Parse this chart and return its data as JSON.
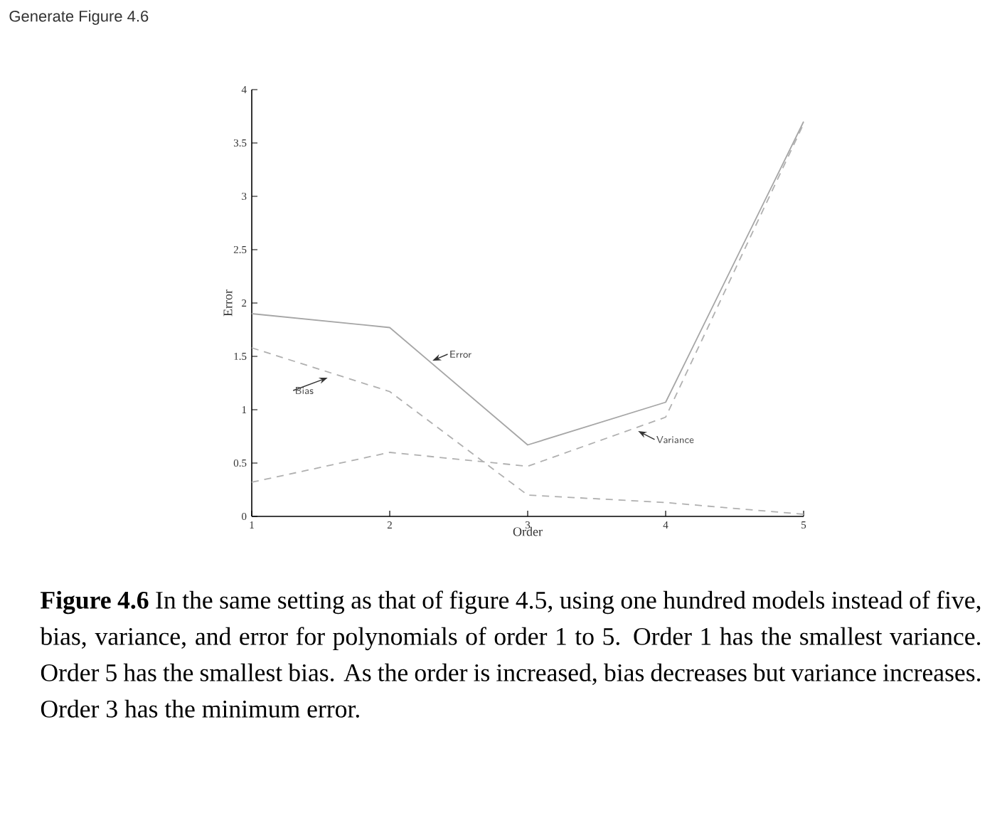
{
  "chart_data": {
    "type": "line",
    "title": "Generate Figure 4.6",
    "xlabel": "Order",
    "ylabel": "Error",
    "x": [
      1,
      2,
      3,
      4,
      5
    ],
    "series": [
      {
        "name": "Error",
        "color": "#a6a6a6",
        "line_style": "solid",
        "values": [
          1.9,
          1.77,
          0.67,
          1.07,
          3.7
        ]
      },
      {
        "name": "Bias",
        "color": "#b0b0b0",
        "line_style": "dashed",
        "values": [
          1.58,
          1.17,
          0.2,
          0.13,
          0.02
        ]
      },
      {
        "name": "Variance",
        "color": "#b0b0b0",
        "line_style": "dashed",
        "values": [
          0.32,
          0.6,
          0.47,
          0.93,
          3.68
        ]
      }
    ],
    "xlim": [
      1,
      5
    ],
    "xticks": [
      1,
      2,
      3,
      4,
      5
    ],
    "ylim": [
      0,
      4
    ],
    "yticks": [
      0,
      0.5,
      1,
      1.5,
      2,
      2.5,
      3,
      3.5,
      4
    ],
    "grid": false,
    "marker": "none",
    "annotations": [
      "**Figure 4.6** In the same setting as that of figure 4.5, using one hundred models instead of five, bias, variance, and error for polynomials of order 1 to 5. Order 1 has the smallest variance. Order 5 has the smallest bias. As the order is increased, bias decreases but variance increases. Order 3 has the minimum error."
    ]
  }
}
